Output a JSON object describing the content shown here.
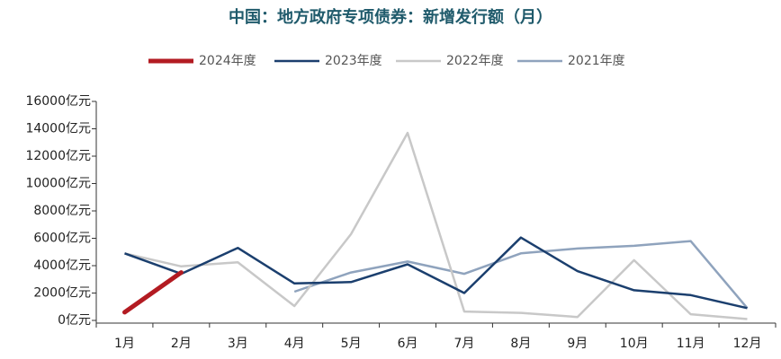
{
  "chart_data": {
    "type": "line",
    "title": "中国：地方政府专项债券：新增发行额（月）",
    "categories": [
      "1月",
      "2月",
      "3月",
      "4月",
      "5月",
      "6月",
      "7月",
      "8月",
      "9月",
      "10月",
      "11月",
      "12月"
    ],
    "series": [
      {
        "name": "2024年度",
        "color": "#b31b22",
        "width": 5,
        "values": [
          600,
          3500,
          null,
          null,
          null,
          null,
          null,
          null,
          null,
          null,
          null,
          null
        ]
      },
      {
        "name": "2023年度",
        "color": "#1b3f6e",
        "width": 2.5,
        "values": [
          4900,
          3400,
          5300,
          2700,
          2800,
          4100,
          2000,
          6050,
          3600,
          2200,
          1850,
          900
        ]
      },
      {
        "name": "2022年度",
        "color": "#c8c8c8",
        "width": 2.5,
        "values": [
          4900,
          3950,
          4250,
          1050,
          6300,
          13700,
          650,
          550,
          250,
          4400,
          450,
          100
        ]
      },
      {
        "name": "2021年度",
        "color": "#8fa3bd",
        "width": 2.5,
        "values": [
          null,
          null,
          null,
          2100,
          3500,
          4300,
          3400,
          4900,
          5250,
          5450,
          5800,
          900
        ]
      }
    ],
    "ylim": [
      0,
      16000
    ],
    "yticks": [
      {
        "value": 0,
        "label": "0亿元"
      },
      {
        "value": 2000,
        "label": "2000亿元"
      },
      {
        "value": 4000,
        "label": "4000亿元"
      },
      {
        "value": 6000,
        "label": "6000亿元"
      },
      {
        "value": 8000,
        "label": "8000亿元"
      },
      {
        "value": 10000,
        "label": "10000亿元"
      },
      {
        "value": 12000,
        "label": "12000亿元"
      },
      {
        "value": 14000,
        "label": "14000亿元"
      },
      {
        "value": 16000,
        "label": "16000亿元"
      }
    ],
    "grid": false
  }
}
